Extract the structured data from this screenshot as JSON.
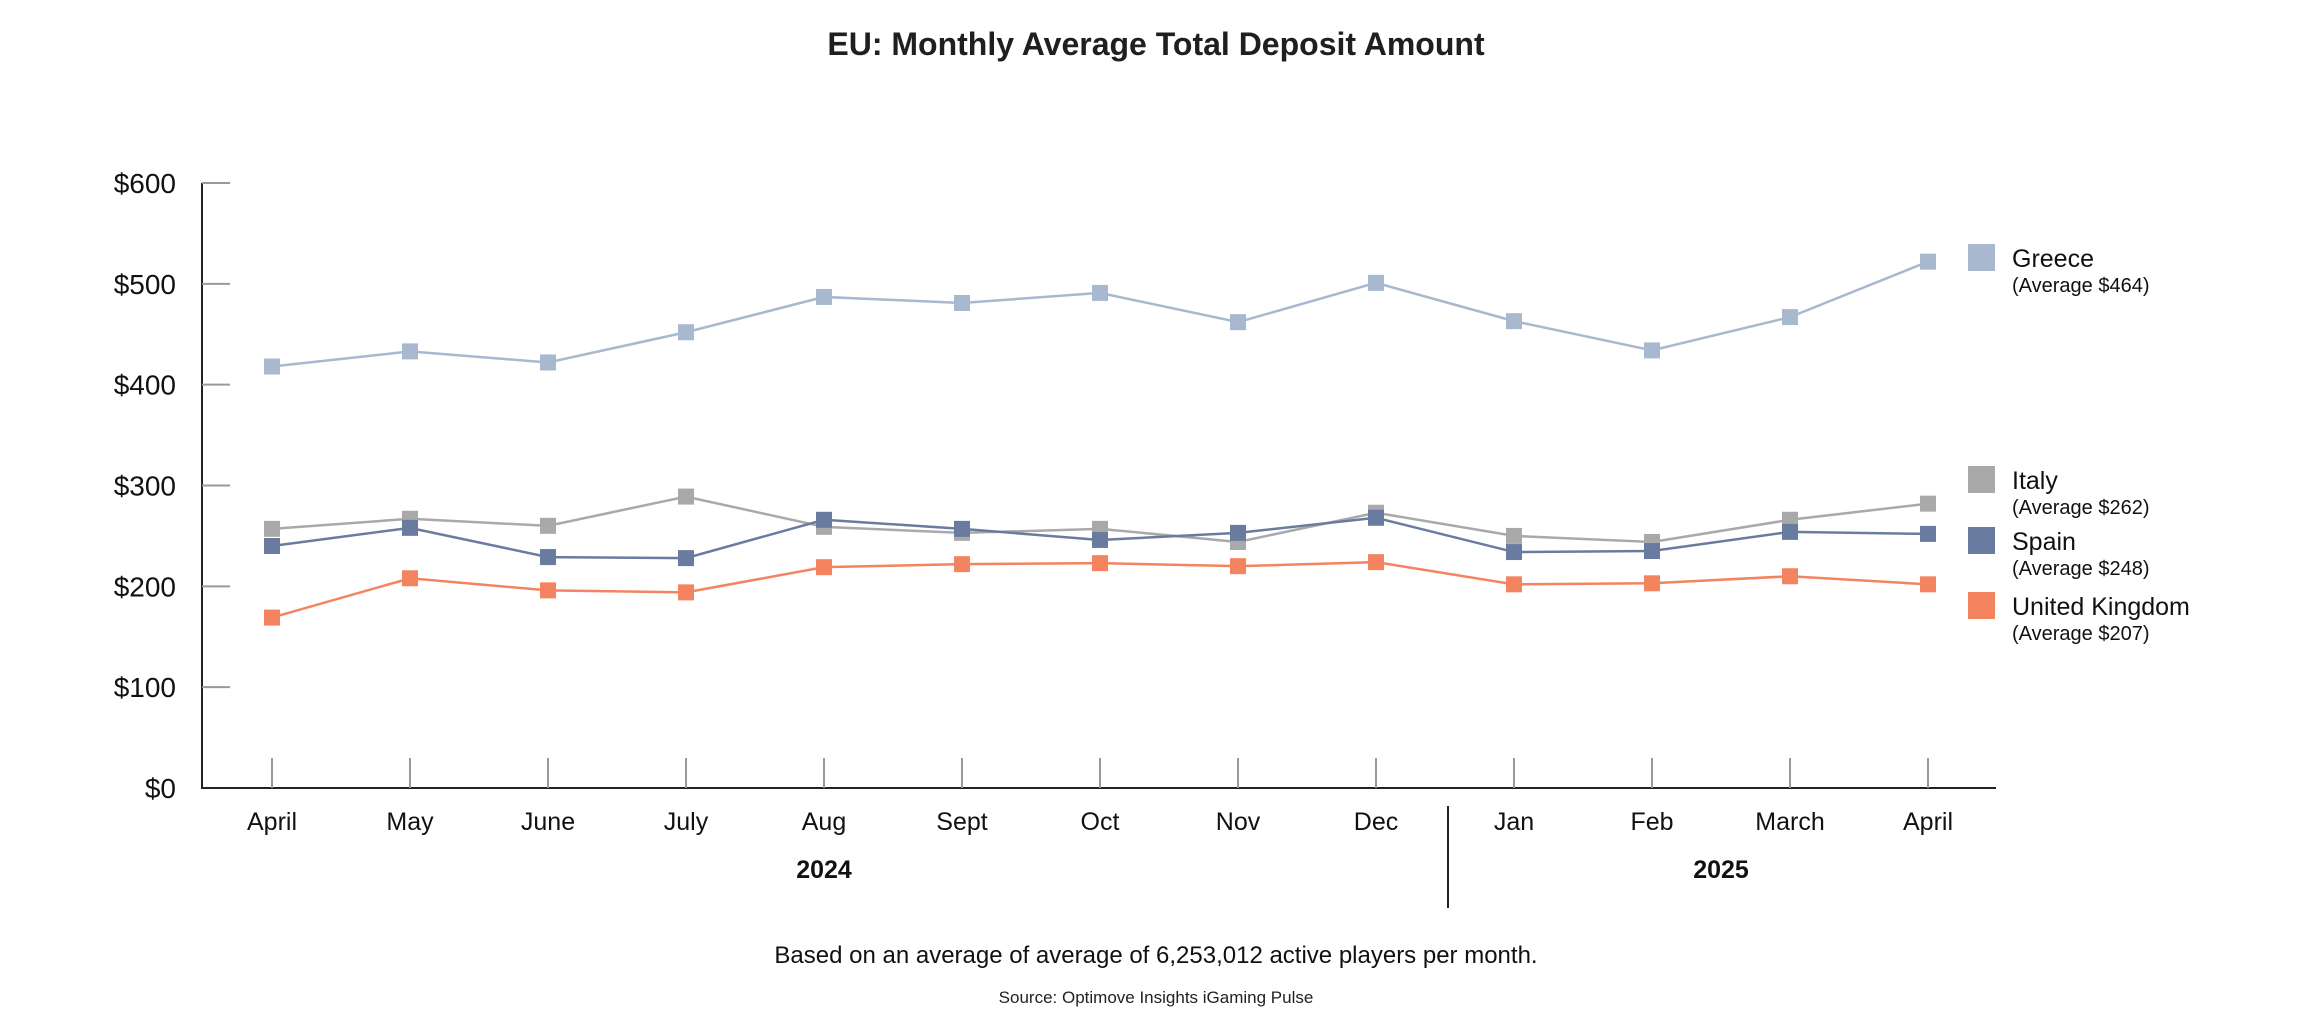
{
  "chart_data": {
    "type": "line",
    "title": "EU: Monthly Average Total Deposit Amount",
    "categories": [
      "April",
      "May",
      "June",
      "July",
      "Aug",
      "Sept",
      "Oct",
      "Nov",
      "Dec",
      "Jan",
      "Feb",
      "March",
      "April"
    ],
    "years": [
      {
        "label": "2024",
        "from": 0,
        "to": 8
      },
      {
        "label": "2025",
        "from": 9,
        "to": 12
      }
    ],
    "y_ticks": [
      "$0",
      "$100",
      "$200",
      "$300",
      "$400",
      "$500",
      "$600"
    ],
    "ylim": [
      0,
      600
    ],
    "series": [
      {
        "name": "Greece",
        "avg_label": "(Average $464)",
        "color": "#a8b8ce",
        "values": [
          418,
          433,
          422,
          452,
          487,
          481,
          491,
          462,
          501,
          463,
          434,
          467,
          522
        ]
      },
      {
        "name": "Italy",
        "avg_label": "(Average $262)",
        "color": "#a9a9a9",
        "values": [
          257,
          267,
          260,
          289,
          259,
          253,
          257,
          244,
          273,
          250,
          244,
          266,
          282
        ]
      },
      {
        "name": "Spain",
        "avg_label": "(Average $248)",
        "color": "#6a7ba0",
        "values": [
          240,
          258,
          229,
          228,
          266,
          257,
          246,
          253,
          268,
          234,
          235,
          254,
          252
        ]
      },
      {
        "name": "United Kingdom",
        "avg_label": "(Average $207)",
        "color": "#f4845f",
        "values": [
          169,
          208,
          196,
          194,
          219,
          222,
          223,
          220,
          224,
          202,
          203,
          210,
          202
        ]
      }
    ],
    "legend_position": "right"
  },
  "footnote": "Based on an average of average of 6,253,012 active players per month.",
  "source": "Source: Optimove Insights iGaming Pulse"
}
